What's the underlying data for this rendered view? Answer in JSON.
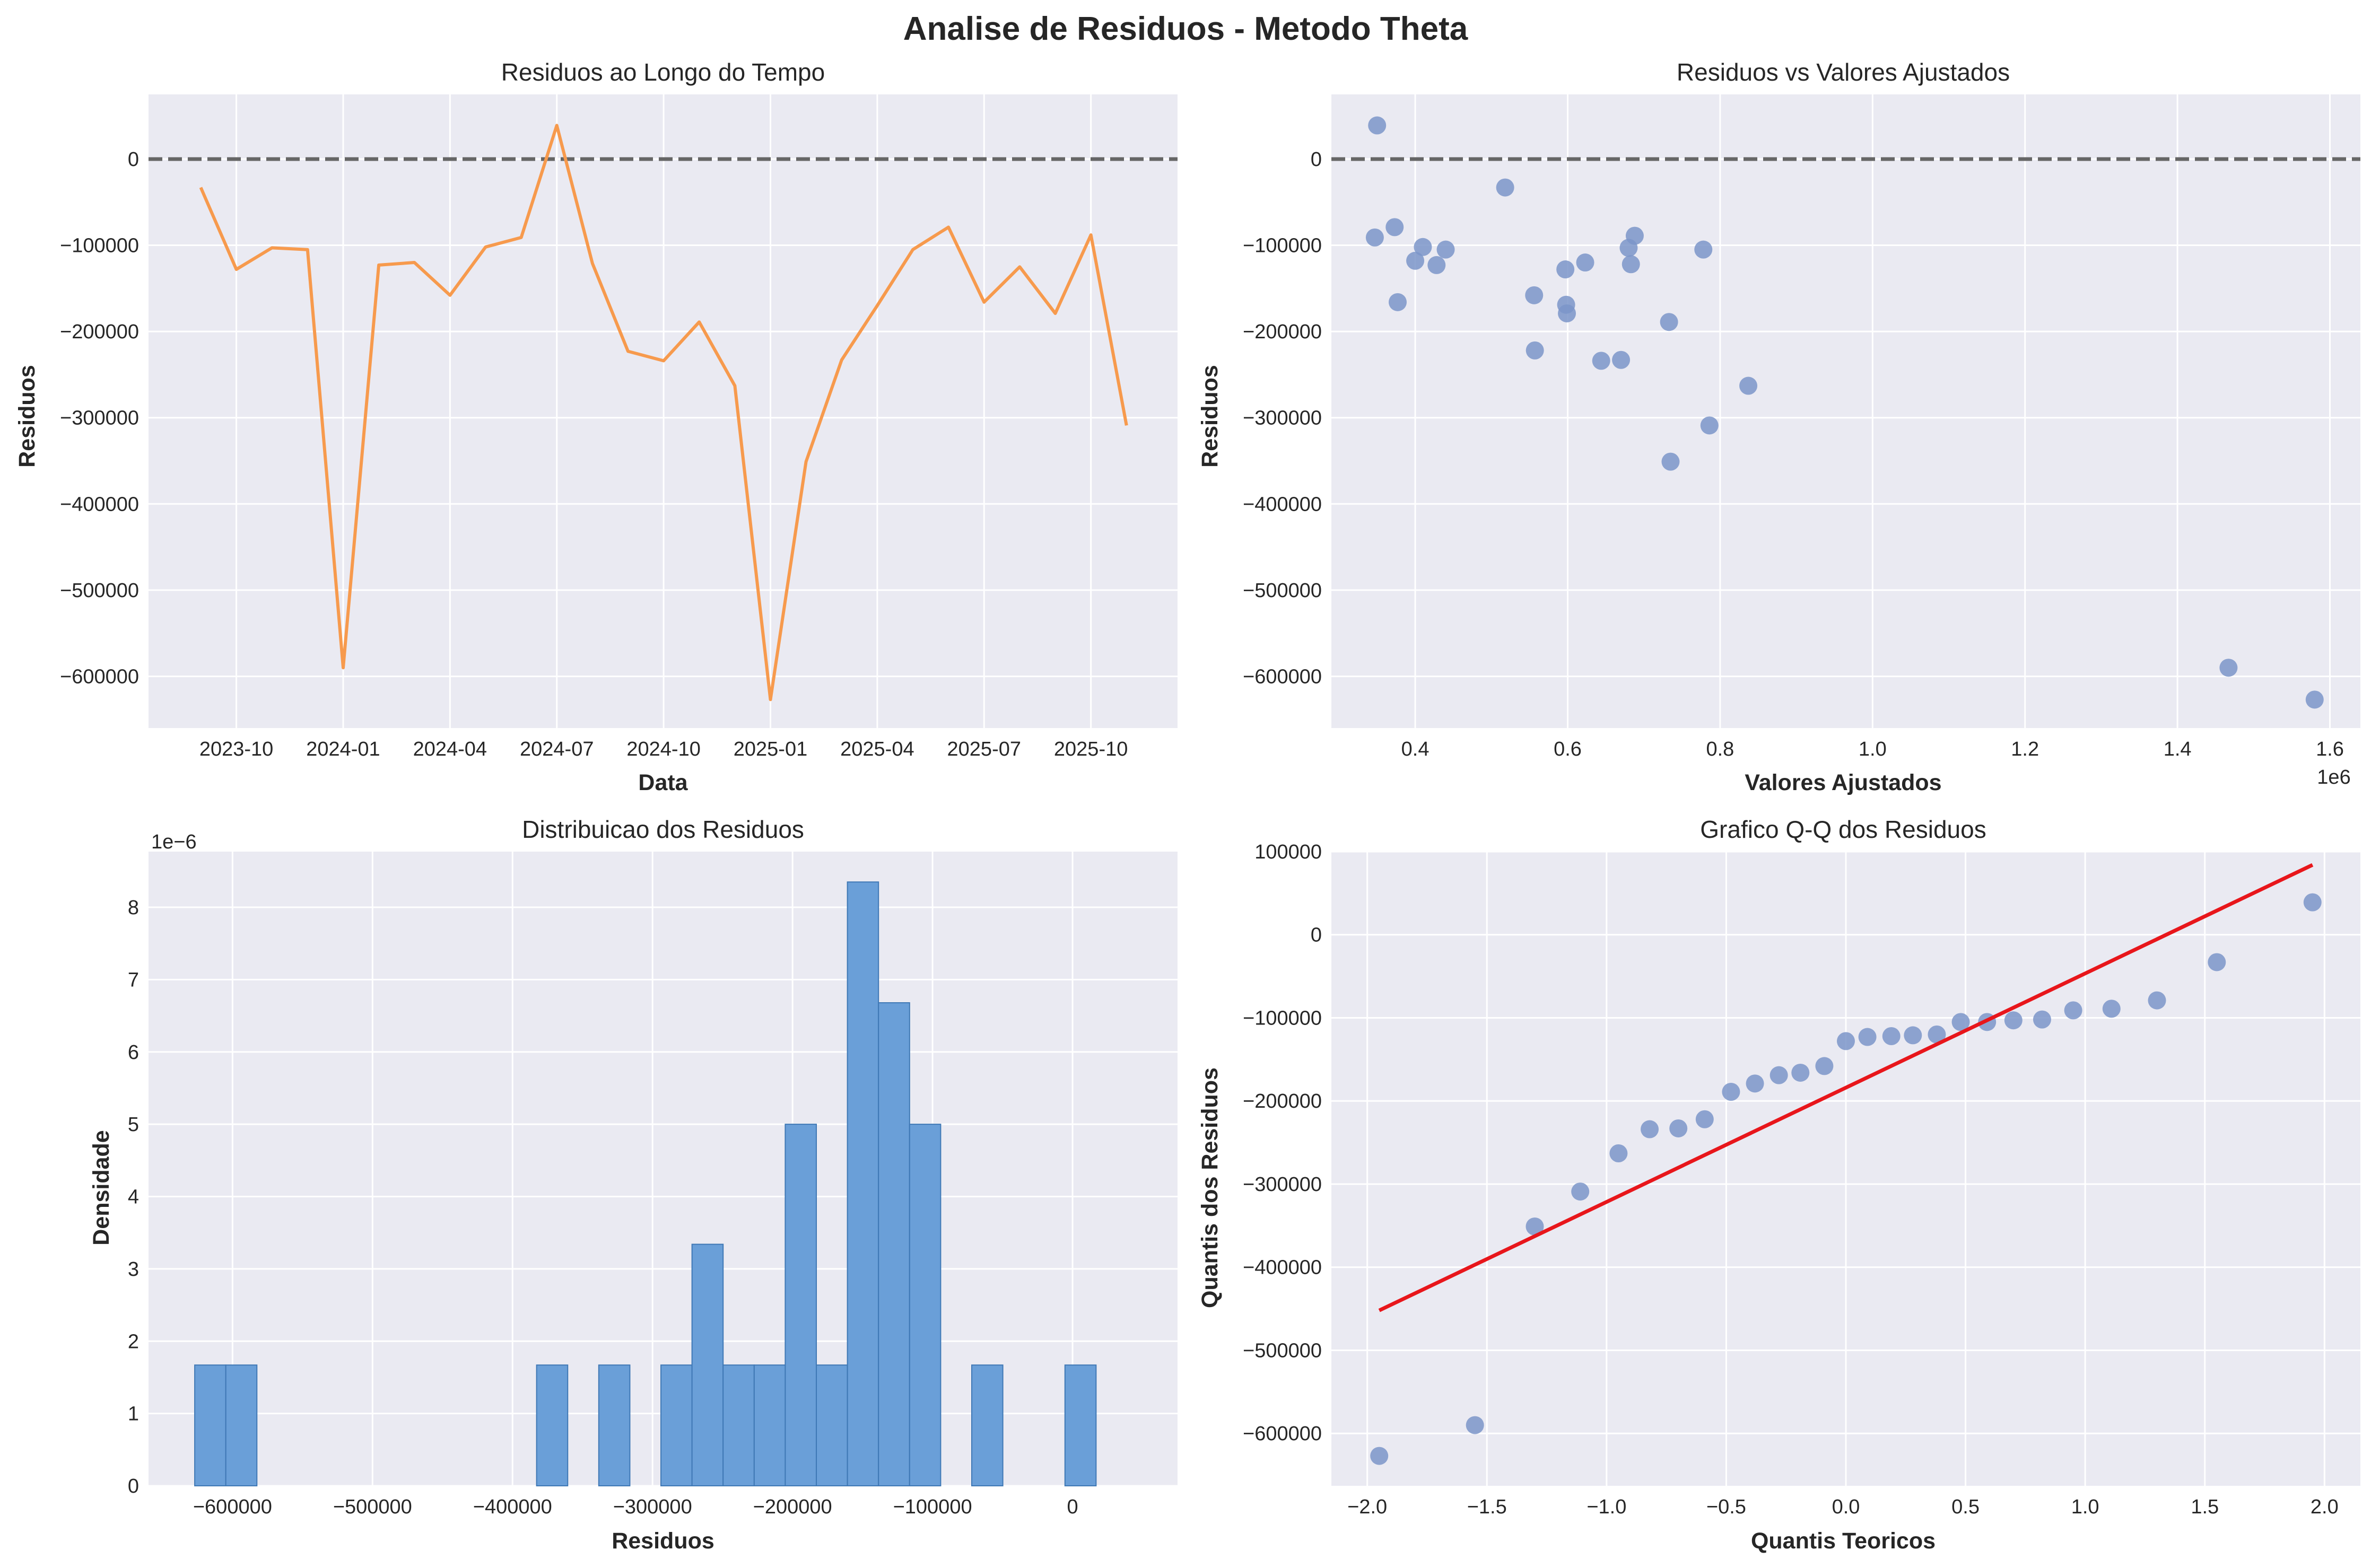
{
  "figure": {
    "title": "Analise de Residuos - Metodo Theta",
    "colors": {
      "panel_bg": "#eaeaf2",
      "grid": "#ffffff",
      "line": "#f79a4d",
      "points": "#7b95c9",
      "hist": "#6a9fd8",
      "hist_edge": "#3f78b5",
      "qq_line": "#e8161b",
      "zero_line": "#666666"
    }
  },
  "chart_data": [
    {
      "id": "time",
      "type": "line",
      "title": "Residuos ao Longo do Tempo",
      "xlabel": "Data",
      "ylabel": "Residuos",
      "x_tick_labels": [
        "2023-10",
        "2024-01",
        "2024-04",
        "2024-07",
        "2024-10",
        "2025-01",
        "2025-04",
        "2025-07",
        "2025-10"
      ],
      "y_tick_labels": [
        "0",
        "−100000",
        "−200000",
        "−300000",
        "−400000",
        "−500000",
        "−600000"
      ],
      "y_ticks": [
        0,
        -100000,
        -200000,
        -300000,
        -400000,
        -500000,
        -600000
      ],
      "ylim": [
        -660000,
        75000
      ],
      "reference_line": 0,
      "grid": true,
      "x": [
        "2023-09-01",
        "2023-10-01",
        "2023-11-01",
        "2023-12-01",
        "2024-01-01",
        "2024-02-01",
        "2024-03-01",
        "2024-04-01",
        "2024-05-01",
        "2024-06-01",
        "2024-07-01",
        "2024-08-01",
        "2024-09-01",
        "2024-10-01",
        "2024-11-01",
        "2024-12-01",
        "2025-01-01",
        "2025-02-01",
        "2025-03-01",
        "2025-04-01",
        "2025-05-01",
        "2025-06-01",
        "2025-07-01",
        "2025-08-01",
        "2025-09-01",
        "2025-10-01",
        "2025-11-01"
      ],
      "values": [
        -33000,
        -128000,
        -103000,
        -105000,
        -590000,
        -123000,
        -120000,
        -158000,
        -102000,
        -91000,
        39000,
        -121000,
        -223000,
        -234000,
        -189000,
        -263000,
        -627000,
        -351000,
        -233000,
        -170000,
        -105000,
        -79000,
        -166000,
        -125000,
        -179000,
        -88000,
        -309000
      ]
    },
    {
      "id": "scatter",
      "type": "scatter",
      "title": "Residuos vs Valores Ajustados",
      "xlabel": "Valores Ajustados",
      "ylabel": "Residuos",
      "x_offset_label": "1e6",
      "x_tick_labels": [
        "0.4",
        "0.6",
        "0.8",
        "1.0",
        "1.2",
        "1.4",
        "1.6"
      ],
      "x_ticks": [
        0.4,
        0.6,
        0.8,
        1.0,
        1.2,
        1.4,
        1.6
      ],
      "xlim": [
        0.29,
        1.64
      ],
      "y_tick_labels": [
        "0",
        "−100000",
        "−200000",
        "−300000",
        "−400000",
        "−500000",
        "−600000"
      ],
      "y_ticks": [
        0,
        -100000,
        -200000,
        -300000,
        -400000,
        -500000,
        -600000
      ],
      "ylim": [
        -660000,
        75000
      ],
      "reference_line": 0,
      "grid": true,
      "points": [
        [
          0.35,
          39000
        ],
        [
          0.347,
          -91000
        ],
        [
          0.373,
          -79000
        ],
        [
          0.377,
          -166000
        ],
        [
          0.4,
          -118000
        ],
        [
          0.41,
          -102000
        ],
        [
          0.428,
          -123000
        ],
        [
          0.44,
          -105000
        ],
        [
          0.518,
          -33000
        ],
        [
          0.556,
          -158000
        ],
        [
          0.557,
          -222000
        ],
        [
          0.597,
          -128000
        ],
        [
          0.598,
          -169000
        ],
        [
          0.599,
          -179000
        ],
        [
          0.623,
          -120000
        ],
        [
          0.644,
          -234000
        ],
        [
          0.67,
          -233000
        ],
        [
          0.68,
          -103000
        ],
        [
          0.683,
          -122000
        ],
        [
          0.688,
          -89000
        ],
        [
          0.733,
          -189000
        ],
        [
          0.735,
          -351000
        ],
        [
          0.778,
          -105000
        ],
        [
          0.786,
          -309000
        ],
        [
          0.837,
          -263000
        ],
        [
          1.467,
          -590000
        ],
        [
          1.58,
          -627000
        ]
      ]
    },
    {
      "id": "hist",
      "type": "bar",
      "title": "Distribuicao dos Residuos",
      "xlabel": "Residuos",
      "ylabel": "Densidade",
      "y_offset_label": "1e−6",
      "x_tick_labels": [
        "−600000",
        "−500000",
        "−400000",
        "−300000",
        "−200000",
        "−100000",
        "0"
      ],
      "x_ticks": [
        -600000,
        -500000,
        -400000,
        -300000,
        -200000,
        -100000,
        0
      ],
      "xlim": [
        -660000,
        75000
      ],
      "y_tick_labels": [
        "0",
        "1",
        "2",
        "3",
        "4",
        "5",
        "6",
        "7",
        "8"
      ],
      "y_ticks": [
        0,
        1,
        2,
        3,
        4,
        5,
        6,
        7,
        8
      ],
      "ylim": [
        0,
        8.77
      ],
      "grid": true,
      "bin_start": -627000,
      "bin_width": 22200,
      "densities": [
        1.67,
        1.67,
        0,
        0,
        0,
        0,
        0,
        0,
        0,
        0,
        0,
        1.67,
        0,
        1.67,
        0,
        1.67,
        3.34,
        1.67,
        1.67,
        5.0,
        1.67,
        8.35,
        6.68,
        5.0,
        0,
        1.67,
        0,
        0,
        1.67
      ]
    },
    {
      "id": "qq",
      "type": "scatter",
      "title": "Grafico Q-Q dos Residuos",
      "xlabel": "Quantis Teoricos",
      "ylabel": "Quantis dos Residuos",
      "x_tick_labels": [
        "−2.0",
        "−1.5",
        "−1.0",
        "−0.5",
        "0.0",
        "0.5",
        "1.0",
        "1.5",
        "2.0"
      ],
      "x_ticks": [
        -2.0,
        -1.5,
        -1.0,
        -0.5,
        0.0,
        0.5,
        1.0,
        1.5,
        2.0
      ],
      "xlim": [
        -2.15,
        2.15
      ],
      "y_tick_labels": [
        "100000",
        "0",
        "−100000",
        "−200000",
        "−300000",
        "−400000",
        "−500000",
        "−600000"
      ],
      "y_ticks": [
        100000,
        0,
        -100000,
        -200000,
        -300000,
        -400000,
        -500000,
        -600000
      ],
      "ylim": [
        -663000,
        100000
      ],
      "grid": true,
      "points": [
        [
          -1.95,
          -627000
        ],
        [
          -1.55,
          -590000
        ],
        [
          -1.3,
          -351000
        ],
        [
          -1.11,
          -309000
        ],
        [
          -0.95,
          -263000
        ],
        [
          -0.82,
          -234000
        ],
        [
          -0.7,
          -233000
        ],
        [
          -0.59,
          -222000
        ],
        [
          -0.48,
          -189000
        ],
        [
          -0.38,
          -179000
        ],
        [
          -0.28,
          -169000
        ],
        [
          -0.19,
          -166000
        ],
        [
          -0.09,
          -158000
        ],
        [
          0.0,
          -128000
        ],
        [
          0.09,
          -123000
        ],
        [
          0.19,
          -122000
        ],
        [
          0.28,
          -121000
        ],
        [
          0.38,
          -120000
        ],
        [
          0.48,
          -105000
        ],
        [
          0.59,
          -105000
        ],
        [
          0.7,
          -103000
        ],
        [
          0.82,
          -102000
        ],
        [
          0.95,
          -91000
        ],
        [
          1.11,
          -89000
        ],
        [
          1.3,
          -79000
        ],
        [
          1.55,
          -33000
        ],
        [
          1.95,
          39000
        ]
      ],
      "fit_line": [
        [
          -1.95,
          -452000
        ],
        [
          1.95,
          84000
        ]
      ]
    }
  ]
}
